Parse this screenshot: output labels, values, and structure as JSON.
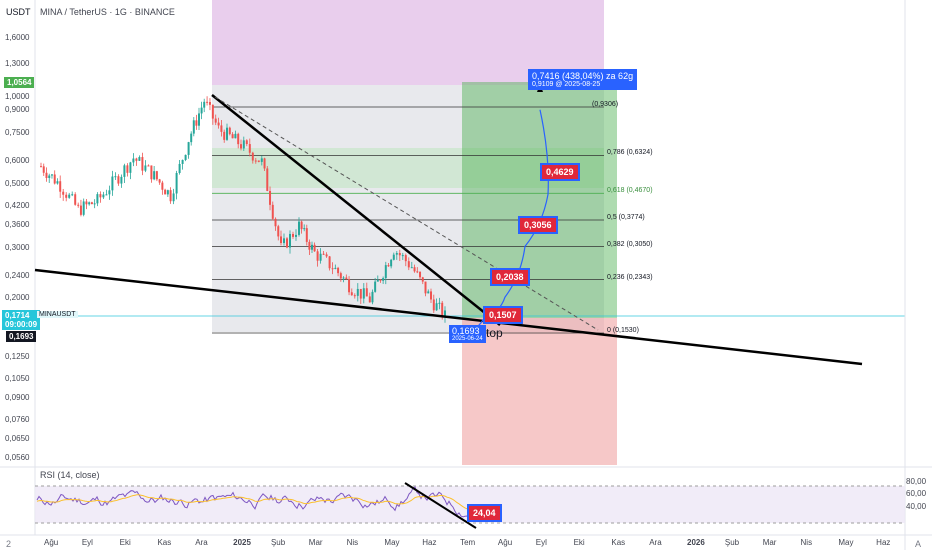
{
  "header": {
    "currency": "USDT",
    "title": "MINA / TetherUS · 1G · BINANCE"
  },
  "price_axis": {
    "ticks": [
      "1,6000",
      "1,3000",
      "1,0000",
      "0,9000",
      "0,7500",
      "0,6000",
      "0,5000",
      "0,4200",
      "0,3600",
      "0,3000",
      "0,2400",
      "0,2000",
      "0,1250",
      "0,1050",
      "0,0900",
      "0,0760",
      "0,0650",
      "0,0560"
    ],
    "current_price": "0,1714",
    "countdown": "09:00:09",
    "symbol_tag": "MINAUSDT",
    "low_price": "0,1693",
    "top_tag": "1,0564"
  },
  "time_axis": {
    "left_marker": "2",
    "ticks": [
      "Ağu",
      "Eyl",
      "Eki",
      "Kas",
      "Ara",
      "2025",
      "Şub",
      "Mar",
      "Nis",
      "May",
      "Haz",
      "Tem",
      "Ağu",
      "Eyl",
      "Eki",
      "Kas",
      "Ara",
      "2026",
      "Şub",
      "Mar",
      "Nis",
      "May",
      "Haz"
    ],
    "right_marker": "A"
  },
  "fib": [
    {
      "label": "(0,9306)"
    },
    {
      "label": "0,786 (0,6324)"
    },
    {
      "label": "0,618 (0,4670)"
    },
    {
      "label": "0,5 (0,3774)"
    },
    {
      "label": "0,382 (0,3050)"
    },
    {
      "label": "0,236 (0,2343)"
    },
    {
      "label": "0 (0,1530)"
    }
  ],
  "projection": {
    "target_main": "0,7416 (438,04%) za 62g",
    "target_sub": "0,9109 @ 2025-08-25",
    "start_main": "0,1693",
    "start_sub": "2025-06-24",
    "stop_label": "top"
  },
  "callouts": [
    "0,1507",
    "0,2038",
    "0,3056",
    "0,4629"
  ],
  "rsi": {
    "title": "RSI (14, close)",
    "ticks": [
      "80,00",
      "60,00",
      "40,00"
    ],
    "value": "24,04"
  },
  "colors": {
    "up": "#26a69a",
    "down": "#ef5350",
    "callout_fill": "#e0283a",
    "callout_border": "#2962ff",
    "rsi_line": "#7e57c2",
    "price_tag": "#26a69a"
  },
  "chart_data": {
    "type": "line",
    "title": "MINA / TetherUS · 1G · BINANCE",
    "ylabel": "USDT",
    "y_scale": "log",
    "ylim": [
      0.055,
      1.75
    ],
    "x": [
      "2024-07-20",
      "2024-08-05",
      "2024-08-20",
      "2024-09-05",
      "2024-09-20",
      "2024-10-05",
      "2024-10-20",
      "2024-11-05",
      "2024-11-20",
      "2024-12-03",
      "2024-12-15",
      "2025-01-05",
      "2025-01-20",
      "2025-02-05",
      "2025-02-20",
      "2025-03-05",
      "2025-03-20",
      "2025-04-05",
      "2025-04-20",
      "2025-05-10",
      "2025-05-25",
      "2025-06-10",
      "2025-06-24"
    ],
    "series": [
      {
        "values": [
          0.58,
          0.5,
          0.41,
          0.44,
          0.52,
          0.62,
          0.55,
          0.46,
          0.72,
          0.98,
          0.78,
          0.68,
          0.6,
          0.3,
          0.36,
          0.29,
          0.26,
          0.22,
          0.2,
          0.3,
          0.26,
          0.2,
          0.17
        ]
      }
    ],
    "fib_levels": [
      0.9306,
      0.6324,
      0.467,
      0.3774,
      0.305,
      0.2343,
      0.153
    ],
    "projection_path": [
      0.1507,
      0.2038,
      0.3056,
      0.4629,
      0.9109
    ],
    "rsi": {
      "ylim": [
        0,
        100
      ],
      "levels": [
        70,
        30
      ],
      "last": 24.04
    }
  }
}
